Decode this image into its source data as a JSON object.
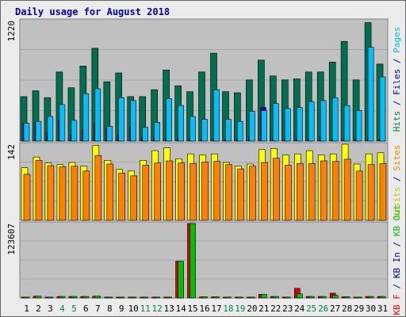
{
  "chart_data": [
    {
      "type": "bar",
      "title": "Daily usage for August 2018",
      "categories": [
        "1",
        "2",
        "3",
        "4",
        "5",
        "6",
        "7",
        "8",
        "9",
        "10",
        "11",
        "12",
        "13",
        "14",
        "15",
        "16",
        "17",
        "18",
        "19",
        "20",
        "21",
        "22",
        "23",
        "24",
        "25",
        "26",
        "27",
        "28",
        "29",
        "30",
        "31"
      ],
      "weekend_days": [
        "4",
        "5",
        "11",
        "12",
        "18",
        "19",
        "25",
        "26"
      ],
      "ymax_label": "1220",
      "ylim": [
        0,
        1220
      ],
      "right_legend": [
        {
          "text": "Hits",
          "color": "#008040"
        },
        {
          "text": " / ",
          "color": "#0000bb"
        },
        {
          "text": "Files",
          "color": "#0000bb"
        },
        {
          "text": " / ",
          "color": "#0000bb"
        },
        {
          "text": "Pages",
          "color": "#00c0ff"
        }
      ],
      "series": [
        {
          "name": "Hits",
          "color": "#006f4f",
          "values": [
            450,
            510,
            440,
            700,
            540,
            760,
            940,
            600,
            690,
            450,
            450,
            520,
            720,
            560,
            500,
            700,
            890,
            500,
            490,
            620,
            820,
            660,
            620,
            630,
            700,
            700,
            800,
            1010,
            620,
            1200,
            780
          ]
        },
        {
          "name": "Files",
          "color": "#0000bb",
          "values": [
            180,
            190,
            90,
            210,
            70,
            120,
            180,
            140,
            60,
            150,
            50,
            40,
            30,
            40,
            30,
            20,
            20,
            20,
            20,
            40,
            340,
            40,
            20,
            30,
            20,
            40,
            20,
            20,
            20,
            20,
            20
          ]
        },
        {
          "name": "Pages",
          "color": "#00c0ff",
          "values": [
            180,
            200,
            250,
            370,
            210,
            480,
            530,
            150,
            440,
            410,
            140,
            190,
            430,
            360,
            250,
            220,
            520,
            220,
            200,
            300,
            310,
            380,
            330,
            340,
            400,
            410,
            440,
            360,
            310,
            950,
            650
          ]
        }
      ]
    },
    {
      "type": "bar",
      "ymax_label": "142",
      "ylim": [
        0,
        142
      ],
      "right_legend": [
        {
          "text": "Visits",
          "color": "#c8c800"
        },
        {
          "text": " / ",
          "color": "#0000bb"
        },
        {
          "text": "Sites",
          "color": "#ff8000"
        }
      ],
      "series": [
        {
          "name": "Visits",
          "color": "#ffff00",
          "values": [
            98,
            118,
            107,
            104,
            108,
            101,
            140,
            112,
            95,
            92,
            112,
            130,
            135,
            115,
            124,
            122,
            124,
            108,
            101,
            105,
            132,
            134,
            122,
            124,
            130,
            122,
            124,
            142,
            105,
            124,
            126
          ]
        },
        {
          "name": "Sites",
          "color": "#ff8000",
          "values": [
            86,
            112,
            102,
            100,
            101,
            92,
            121,
            105,
            88,
            83,
            103,
            107,
            111,
            107,
            106,
            109,
            110,
            104,
            96,
            101,
            108,
            116,
            103,
            106,
            106,
            111,
            110,
            114,
            92,
            104,
            106
          ]
        }
      ]
    },
    {
      "type": "bar",
      "ymax_label": "123607",
      "ylim": [
        0,
        123607
      ],
      "right_legend": [
        {
          "text": "KB F",
          "color": "#ff0000"
        },
        {
          "text": " / ",
          "color": "#0000bb"
        },
        {
          "text": "KB In",
          "color": "#0000bb"
        },
        {
          "text": " / ",
          "color": "#0000bb"
        },
        {
          "text": "KB Out",
          "color": "#00c000"
        }
      ],
      "series": [
        {
          "name": "KB F",
          "color": "#dd0000",
          "values": [
            1500,
            3000,
            1500,
            2500,
            2500,
            2500,
            3000,
            1500,
            1500,
            1500,
            1500,
            1500,
            1500,
            61000,
            123607,
            1800,
            1800,
            1500,
            1500,
            1500,
            6000,
            2500,
            1500,
            16000,
            2500,
            2500,
            8000,
            2000,
            1500,
            2500,
            2500
          ]
        },
        {
          "name": "KB Out",
          "color": "#00c000",
          "values": [
            1500,
            3000,
            1500,
            2500,
            2500,
            2500,
            3000,
            1500,
            1500,
            1500,
            1500,
            1500,
            1500,
            61000,
            123607,
            1800,
            1800,
            1500,
            1500,
            1500,
            6000,
            2500,
            1500,
            7000,
            2500,
            2500,
            4500,
            2000,
            1500,
            2500,
            2500
          ]
        }
      ]
    }
  ]
}
